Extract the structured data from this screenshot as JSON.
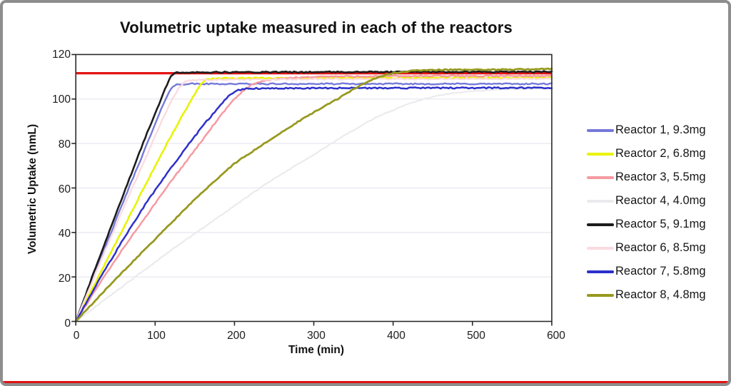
{
  "chart_data": {
    "type": "line",
    "title": "Volumetric uptake measured in each of the reactors",
    "xlabel": "Time (min)",
    "ylabel": "Volumetric Uptake (nmL)",
    "xlim": [
      0,
      600
    ],
    "ylim": [
      0,
      120
    ],
    "xticks": [
      0,
      100,
      200,
      300,
      400,
      500,
      600
    ],
    "yticks": [
      0,
      20,
      40,
      60,
      80,
      100,
      120
    ],
    "grid": "horizontal-only",
    "legend_position": "right-outside",
    "reference_line": {
      "y": 111.6,
      "color": "#e41414"
    },
    "series": [
      {
        "name": "Reactor 1, 9.3mg",
        "color": "#7579d9",
        "line_width": 2.4,
        "noise": 0.3,
        "points": [
          [
            0,
            0
          ],
          [
            30,
            27
          ],
          [
            60,
            54
          ],
          [
            90,
            80
          ],
          [
            105,
            93
          ],
          [
            113,
            100
          ],
          [
            120,
            104.8
          ],
          [
            127,
            106.5
          ],
          [
            140,
            106.8
          ],
          [
            600,
            106.8
          ]
        ]
      },
      {
        "name": "Reactor 2, 6.8mg",
        "color": "#e8f400",
        "line_width": 2.6,
        "noise": 0.3,
        "points": [
          [
            0,
            0
          ],
          [
            30,
            21
          ],
          [
            60,
            42
          ],
          [
            90,
            63
          ],
          [
            115,
            80
          ],
          [
            135,
            93
          ],
          [
            148,
            101
          ],
          [
            156,
            106
          ],
          [
            163,
            108.6
          ],
          [
            175,
            109.3
          ],
          [
            600,
            109.6
          ]
        ]
      },
      {
        "name": "Reactor 3, 5.5mg",
        "color": "#f59aa1",
        "line_width": 2.5,
        "noise": 0.3,
        "points": [
          [
            0,
            0
          ],
          [
            30,
            17
          ],
          [
            60,
            33
          ],
          [
            90,
            48
          ],
          [
            120,
            63
          ],
          [
            150,
            77
          ],
          [
            175,
            89
          ],
          [
            195,
            98
          ],
          [
            210,
            103.5
          ],
          [
            222,
            106.5
          ],
          [
            240,
            108.4
          ],
          [
            270,
            109.5
          ],
          [
            310,
            110.1
          ],
          [
            400,
            110.3
          ],
          [
            600,
            110.4
          ]
        ]
      },
      {
        "name": "Reactor 4, 4.0mg",
        "color": "#ebebee",
        "line_width": 2.2,
        "noise": 0.2,
        "points": [
          [
            0,
            0
          ],
          [
            60,
            16
          ],
          [
            120,
            32
          ],
          [
            180,
            47
          ],
          [
            240,
            62
          ],
          [
            300,
            75
          ],
          [
            340,
            84
          ],
          [
            380,
            92
          ],
          [
            420,
            98
          ],
          [
            455,
            101.5
          ],
          [
            490,
            103.3
          ],
          [
            530,
            104.2
          ],
          [
            570,
            104.6
          ],
          [
            600,
            104.7
          ]
        ]
      },
      {
        "name": "Reactor 5, 9.1mg",
        "color": "#1c1c1c",
        "line_width": 2.6,
        "noise": 0.3,
        "points": [
          [
            0,
            0
          ],
          [
            30,
            29
          ],
          [
            60,
            57
          ],
          [
            90,
            85
          ],
          [
            102,
            95
          ],
          [
            112,
            104
          ],
          [
            119,
            109.8
          ],
          [
            126,
            111.8
          ],
          [
            140,
            112
          ],
          [
            600,
            112.3
          ]
        ]
      },
      {
        "name": "Reactor 6, 8.5mg",
        "color": "#fbdbe0",
        "line_width": 2.4,
        "noise": 0.3,
        "points": [
          [
            0,
            0
          ],
          [
            30,
            26
          ],
          [
            60,
            51
          ],
          [
            90,
            75
          ],
          [
            108,
            90
          ],
          [
            120,
            99
          ],
          [
            130,
            105
          ],
          [
            138,
            107.9
          ],
          [
            150,
            108.6
          ],
          [
            300,
            108.9
          ],
          [
            600,
            109.1
          ]
        ]
      },
      {
        "name": "Reactor 7, 5.8mg",
        "color": "#2d30c9",
        "line_width": 2.5,
        "noise": 0.3,
        "points": [
          [
            0,
            0
          ],
          [
            30,
            19
          ],
          [
            60,
            37
          ],
          [
            90,
            54
          ],
          [
            120,
            69
          ],
          [
            145,
            81
          ],
          [
            165,
            90
          ],
          [
            182,
            97
          ],
          [
            193,
            101.5
          ],
          [
            202,
            103.9
          ],
          [
            215,
            104.7
          ],
          [
            260,
            104.9
          ],
          [
            600,
            105
          ]
        ]
      },
      {
        "name": "Reactor 8, 4.8mg",
        "color": "#97991f",
        "line_width": 2.8,
        "noise": 0.25,
        "points": [
          [
            0,
            0
          ],
          [
            50,
            19
          ],
          [
            100,
            37
          ],
          [
            150,
            55
          ],
          [
            200,
            71
          ],
          [
            250,
            83
          ],
          [
            290,
            92
          ],
          [
            330,
            100
          ],
          [
            355,
            105.5
          ],
          [
            380,
            109.8
          ],
          [
            400,
            111.6
          ],
          [
            425,
            112.7
          ],
          [
            455,
            113.1
          ],
          [
            520,
            113.2
          ],
          [
            600,
            113.5
          ]
        ]
      }
    ],
    "style": {
      "grid_color": "#eaeaf2",
      "frame_color": "#2a2a2a",
      "text_color": "#1c1c1c",
      "background": "#ffffff",
      "outer_border_color": "#8d8d8d",
      "bottom_edge_color": "#e01313"
    }
  }
}
